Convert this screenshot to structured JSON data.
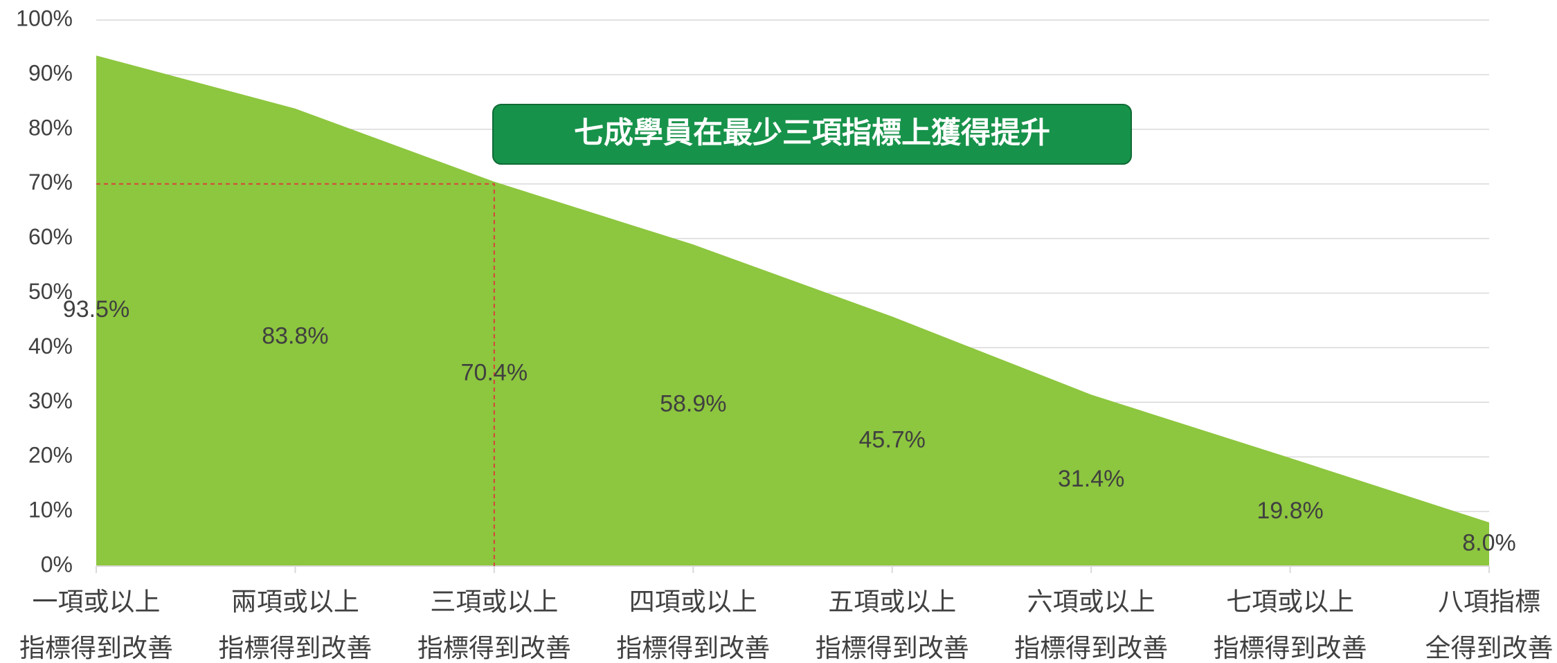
{
  "chart_data": {
    "type": "area",
    "categories": [
      "一項或以上\n指標得到改善",
      "兩項或以上\n指標得到改善",
      "三項或以上\n指標得到改善",
      "四項或以上\n指標得到改善",
      "五項或以上\n指標得到改善",
      "六項或以上\n指標得到改善",
      "七項或以上\n指標得到改善",
      "八項指標\n全得到改善"
    ],
    "values": [
      93.5,
      83.8,
      70.4,
      58.9,
      45.7,
      31.4,
      19.8,
      8.0
    ],
    "value_labels": [
      "93.5%",
      "83.8%",
      "70.4%",
      "58.9%",
      "45.7%",
      "31.4%",
      "19.8%",
      "8.0%"
    ],
    "color": "#8dc63f",
    "ylim": [
      0,
      100
    ],
    "yticks": [
      {
        "value": 0,
        "label": "0%"
      },
      {
        "value": 10,
        "label": "10%"
      },
      {
        "value": 20,
        "label": "20%"
      },
      {
        "value": 30,
        "label": "30%"
      },
      {
        "value": 40,
        "label": "40%"
      },
      {
        "value": 50,
        "label": "50%"
      },
      {
        "value": 60,
        "label": "60%"
      },
      {
        "value": 70,
        "label": "70%"
      },
      {
        "value": 80,
        "label": "80%"
      },
      {
        "value": 90,
        "label": "90%"
      },
      {
        "value": 100,
        "label": "100%"
      }
    ],
    "grid": true,
    "annotation": "七成學員在最少三項指標上獲得提升",
    "reference_y": 70,
    "reference_color": "#d9403a"
  }
}
